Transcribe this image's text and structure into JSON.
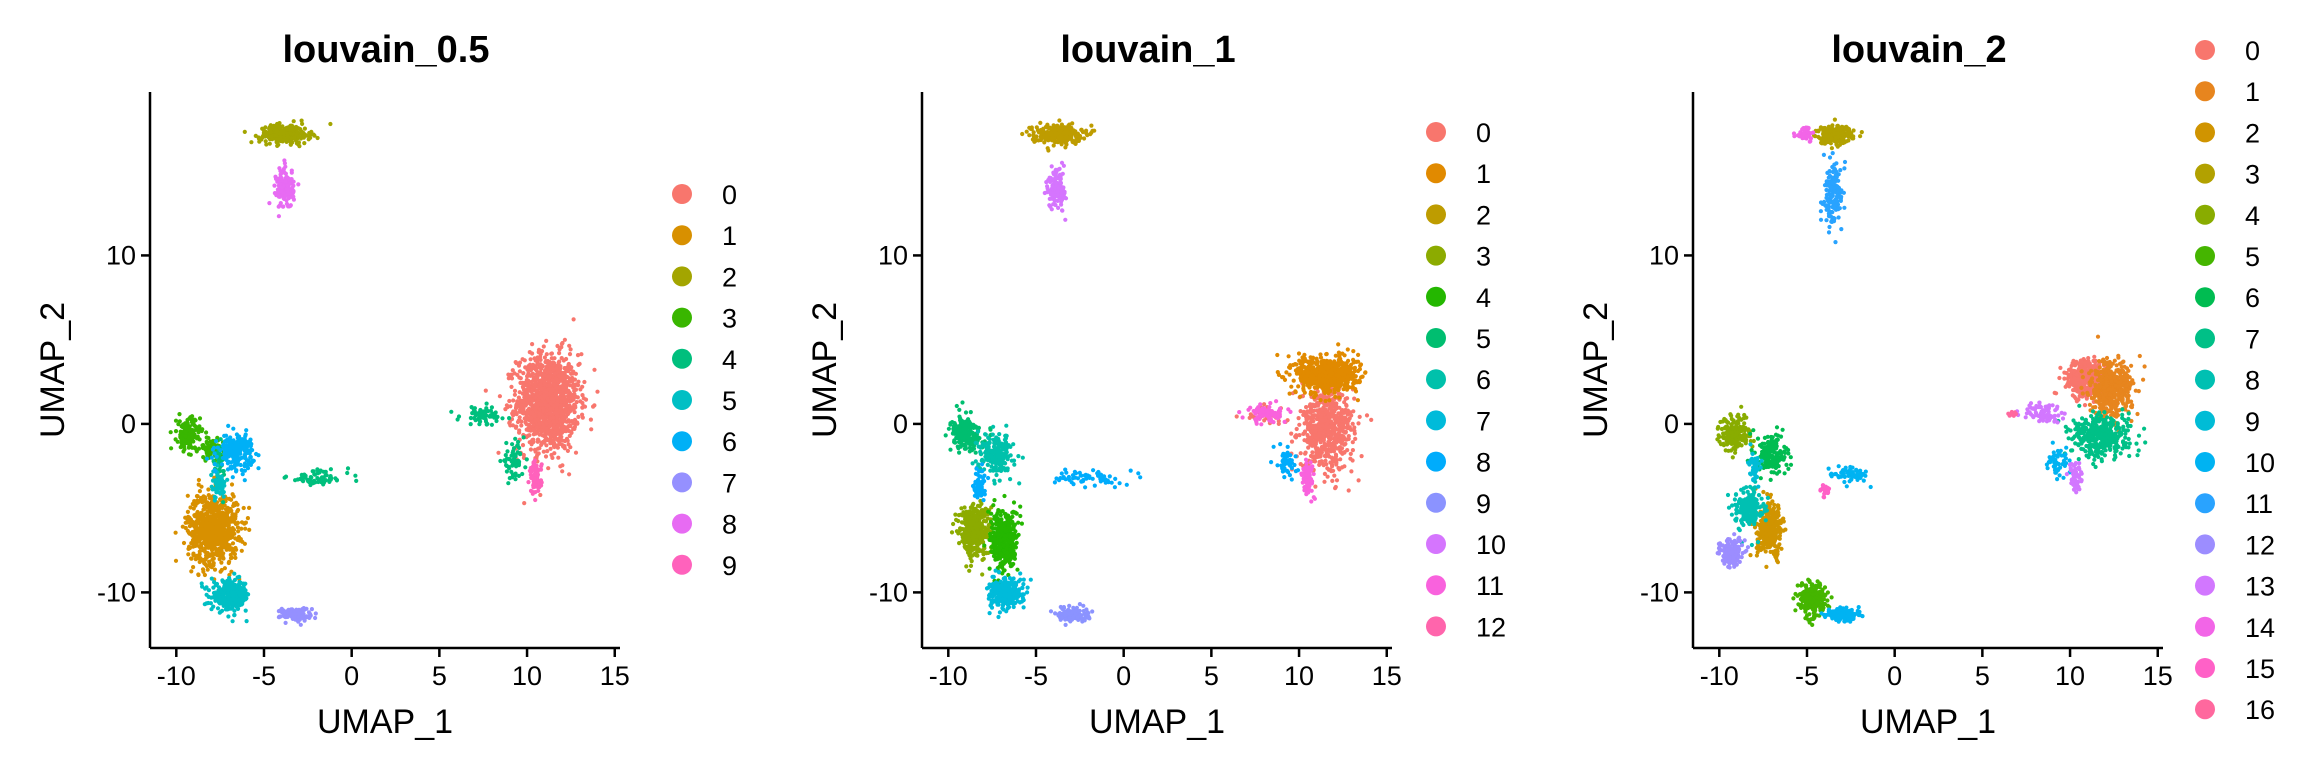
{
  "chart_data": [
    {
      "type": "scatter",
      "title": "louvain_0.5",
      "xlabel": "UMAP_1",
      "ylabel": "UMAP_2",
      "xlim": [
        -11.5,
        15.3
      ],
      "ylim": [
        -13.3,
        19.7
      ],
      "xticks": [
        -10,
        -5,
        0,
        5,
        10,
        15
      ],
      "xtick_labels": [
        "-10",
        "-5",
        "0",
        "5",
        "10",
        "15"
      ],
      "yticks": [
        -10,
        0,
        10
      ],
      "ytick_labels": [
        "-10",
        "0",
        "10"
      ],
      "grid": false,
      "legend": "right",
      "series": [
        {
          "name": "0",
          "color": "#F8766D",
          "regions": [
            [
              11.2,
              1.3,
              1.6,
              2.6,
              1300
            ]
          ]
        },
        {
          "name": "1",
          "color": "#D89000",
          "regions": [
            [
              -7.9,
              -6.2,
              1.3,
              1.9,
              800
            ]
          ]
        },
        {
          "name": "2",
          "color": "#A3A500",
          "regions": [
            [
              -3.8,
              17.2,
              1.3,
              0.5,
              260
            ]
          ]
        },
        {
          "name": "3",
          "color": "#39B600",
          "regions": [
            [
              -9.3,
              -0.6,
              0.6,
              0.9,
              170
            ],
            [
              -8.0,
              -1.5,
              0.6,
              0.6,
              80
            ]
          ]
        },
        {
          "name": "4",
          "color": "#00BF7D",
          "regions": [
            [
              7.5,
              0.5,
              1.2,
              0.5,
              70
            ],
            [
              -1.9,
              -3.2,
              1.6,
              0.45,
              70
            ],
            [
              -7.5,
              -2.6,
              0.35,
              1.2,
              50
            ],
            [
              9.2,
              -2.2,
              0.6,
              0.9,
              60
            ]
          ]
        },
        {
          "name": "5",
          "color": "#00BFC4",
          "regions": [
            [
              -6.9,
              -10.2,
              1.0,
              0.8,
              300
            ],
            [
              -7.6,
              -3.7,
              0.4,
              0.8,
              50
            ]
          ]
        },
        {
          "name": "6",
          "color": "#00B0F6",
          "regions": [
            [
              -6.6,
              -1.6,
              0.9,
              0.9,
              220
            ]
          ]
        },
        {
          "name": "7",
          "color": "#9590FF",
          "regions": [
            [
              -3.2,
              -11.3,
              0.8,
              0.35,
              120
            ]
          ]
        },
        {
          "name": "8",
          "color": "#E76BF3",
          "regions": [
            [
              -3.8,
              14.0,
              0.45,
              1.1,
              140
            ]
          ]
        },
        {
          "name": "9",
          "color": "#FF62BC",
          "regions": [
            [
              10.5,
              -3.2,
              0.3,
              0.9,
              80
            ]
          ]
        }
      ]
    },
    {
      "type": "scatter",
      "title": "louvain_1",
      "xlabel": "UMAP_1",
      "ylabel": "UMAP_2",
      "xlim": [
        -11.5,
        15.3
      ],
      "ylim": [
        -13.3,
        19.7
      ],
      "xticks": [
        -10,
        -5,
        0,
        5,
        10,
        15
      ],
      "xtick_labels": [
        "-10",
        "-5",
        "0",
        "5",
        "10",
        "15"
      ],
      "yticks": [
        -10,
        0,
        10
      ],
      "ytick_labels": [
        "-10",
        "0",
        "10"
      ],
      "grid": false,
      "legend": "right",
      "series": [
        {
          "name": "0",
          "color": "#F8766D",
          "regions": [
            [
              11.6,
              -0.2,
              1.4,
              2.3,
              650
            ],
            [
              7.9,
              0.6,
              0.9,
              0.4,
              40
            ]
          ]
        },
        {
          "name": "1",
          "color": "#E18A00",
          "regions": [
            [
              11.6,
              2.9,
              1.6,
              1.0,
              650
            ]
          ]
        },
        {
          "name": "2",
          "color": "#BE9C00",
          "regions": [
            [
              -3.8,
              17.2,
              1.3,
              0.5,
              260
            ]
          ]
        },
        {
          "name": "3",
          "color": "#8CAB00",
          "regions": [
            [
              -8.5,
              -6.3,
              0.8,
              1.4,
              400
            ]
          ]
        },
        {
          "name": "4",
          "color": "#24B700",
          "regions": [
            [
              -6.8,
              -6.9,
              0.7,
              1.7,
              380
            ]
          ]
        },
        {
          "name": "5",
          "color": "#00BE70",
          "regions": [
            [
              -9.0,
              -0.6,
              0.8,
              0.9,
              200
            ]
          ]
        },
        {
          "name": "6",
          "color": "#00C1AB",
          "regions": [
            [
              -7.3,
              -1.8,
              0.9,
              1.1,
              200
            ]
          ]
        },
        {
          "name": "7",
          "color": "#00BBDA",
          "regions": [
            [
              -6.7,
              -10.1,
              0.9,
              0.8,
              280
            ]
          ]
        },
        {
          "name": "8",
          "color": "#00ACFC",
          "regions": [
            [
              -1.9,
              -3.2,
              1.6,
              0.45,
              70
            ],
            [
              -8.2,
              -3.5,
              0.3,
              0.9,
              60
            ],
            [
              9.3,
              -2.3,
              0.5,
              0.9,
              50
            ]
          ]
        },
        {
          "name": "9",
          "color": "#8B93FF",
          "regions": [
            [
              -2.9,
              -11.3,
              0.8,
              0.35,
              130
            ]
          ]
        },
        {
          "name": "10",
          "color": "#D575FE",
          "regions": [
            [
              -3.8,
              14.0,
              0.45,
              1.1,
              140
            ]
          ]
        },
        {
          "name": "11",
          "color": "#F962DD",
          "regions": [
            [
              8.2,
              0.6,
              1.1,
              0.5,
              90
            ],
            [
              10.5,
              -3.2,
              0.3,
              0.9,
              80
            ]
          ]
        },
        {
          "name": "12",
          "color": "#FF65AC",
          "regions": []
        }
      ]
    },
    {
      "type": "scatter",
      "title": "louvain_2",
      "xlabel": "UMAP_1",
      "ylabel": "UMAP_2",
      "xlim": [
        -11.5,
        15.3
      ],
      "ylim": [
        -13.3,
        19.7
      ],
      "xticks": [
        -10,
        -5,
        0,
        5,
        10,
        15
      ],
      "xtick_labels": [
        "-10",
        "-5",
        "0",
        "5",
        "10",
        "15"
      ],
      "yticks": [
        -10,
        0,
        10
      ],
      "ytick_labels": [
        "-10",
        "0",
        "10"
      ],
      "grid": false,
      "legend": "right",
      "series": [
        {
          "name": "0",
          "color": "#F8766D",
          "regions": [
            [
              10.9,
              2.7,
              1.0,
              1.0,
              400
            ]
          ]
        },
        {
          "name": "1",
          "color": "#E7851E",
          "regions": [
            [
              12.3,
              2.0,
              1.1,
              1.5,
              450
            ]
          ]
        },
        {
          "name": "2",
          "color": "#D09400",
          "regions": [
            [
              -7.1,
              -6.3,
              0.7,
              1.4,
              300
            ]
          ]
        },
        {
          "name": "3",
          "color": "#B2A100",
          "regions": [
            [
              -3.4,
              17.2,
              1.0,
              0.5,
              200
            ]
          ]
        },
        {
          "name": "4",
          "color": "#89AC00",
          "regions": [
            [
              -9.1,
              -0.6,
              0.8,
              0.9,
              200
            ]
          ]
        },
        {
          "name": "5",
          "color": "#45B500",
          "regions": [
            [
              -4.7,
              -10.4,
              0.7,
              0.9,
              220
            ]
          ]
        },
        {
          "name": "6",
          "color": "#00BC51",
          "regions": [
            [
              -7.0,
              -1.8,
              0.8,
              1.1,
              180
            ]
          ]
        },
        {
          "name": "7",
          "color": "#00C087",
          "regions": [
            [
              11.8,
              -0.7,
              1.5,
              1.1,
              400
            ]
          ]
        },
        {
          "name": "8",
          "color": "#00C0B2",
          "regions": [
            [
              -8.3,
              -5.0,
              0.7,
              1.0,
              200
            ]
          ]
        },
        {
          "name": "9",
          "color": "#00BCD6",
          "regions": [
            [
              -8.0,
              -2.5,
              0.3,
              0.8,
              50
            ]
          ]
        },
        {
          "name": "10",
          "color": "#00B3F2",
          "regions": [
            [
              -3.0,
              -11.3,
              0.8,
              0.35,
              120
            ],
            [
              -2.5,
              -3.0,
              1.3,
              0.45,
              60
            ],
            [
              9.3,
              -2.3,
              0.5,
              0.9,
              50
            ]
          ]
        },
        {
          "name": "11",
          "color": "#29A3FF",
          "regions": [
            [
              -3.5,
              13.6,
              0.5,
              1.5,
              160
            ]
          ]
        },
        {
          "name": "12",
          "color": "#9C8DFF",
          "regions": [
            [
              -9.3,
              -7.6,
              0.6,
              0.8,
              150
            ]
          ]
        },
        {
          "name": "13",
          "color": "#D277FF",
          "regions": [
            [
              8.3,
              0.7,
              1.0,
              0.5,
              80
            ],
            [
              10.3,
              -3.3,
              0.3,
              0.8,
              60
            ]
          ]
        },
        {
          "name": "14",
          "color": "#F265E7",
          "regions": [
            [
              -5.1,
              17.2,
              0.5,
              0.4,
              50
            ]
          ]
        },
        {
          "name": "15",
          "color": "#FF61C7",
          "regions": [
            [
              -3.9,
              -4.0,
              0.25,
              0.4,
              20
            ]
          ]
        },
        {
          "name": "16",
          "color": "#FF689E",
          "regions": [
            [
              6.8,
              0.6,
              0.4,
              0.15,
              10
            ]
          ]
        }
      ]
    }
  ]
}
